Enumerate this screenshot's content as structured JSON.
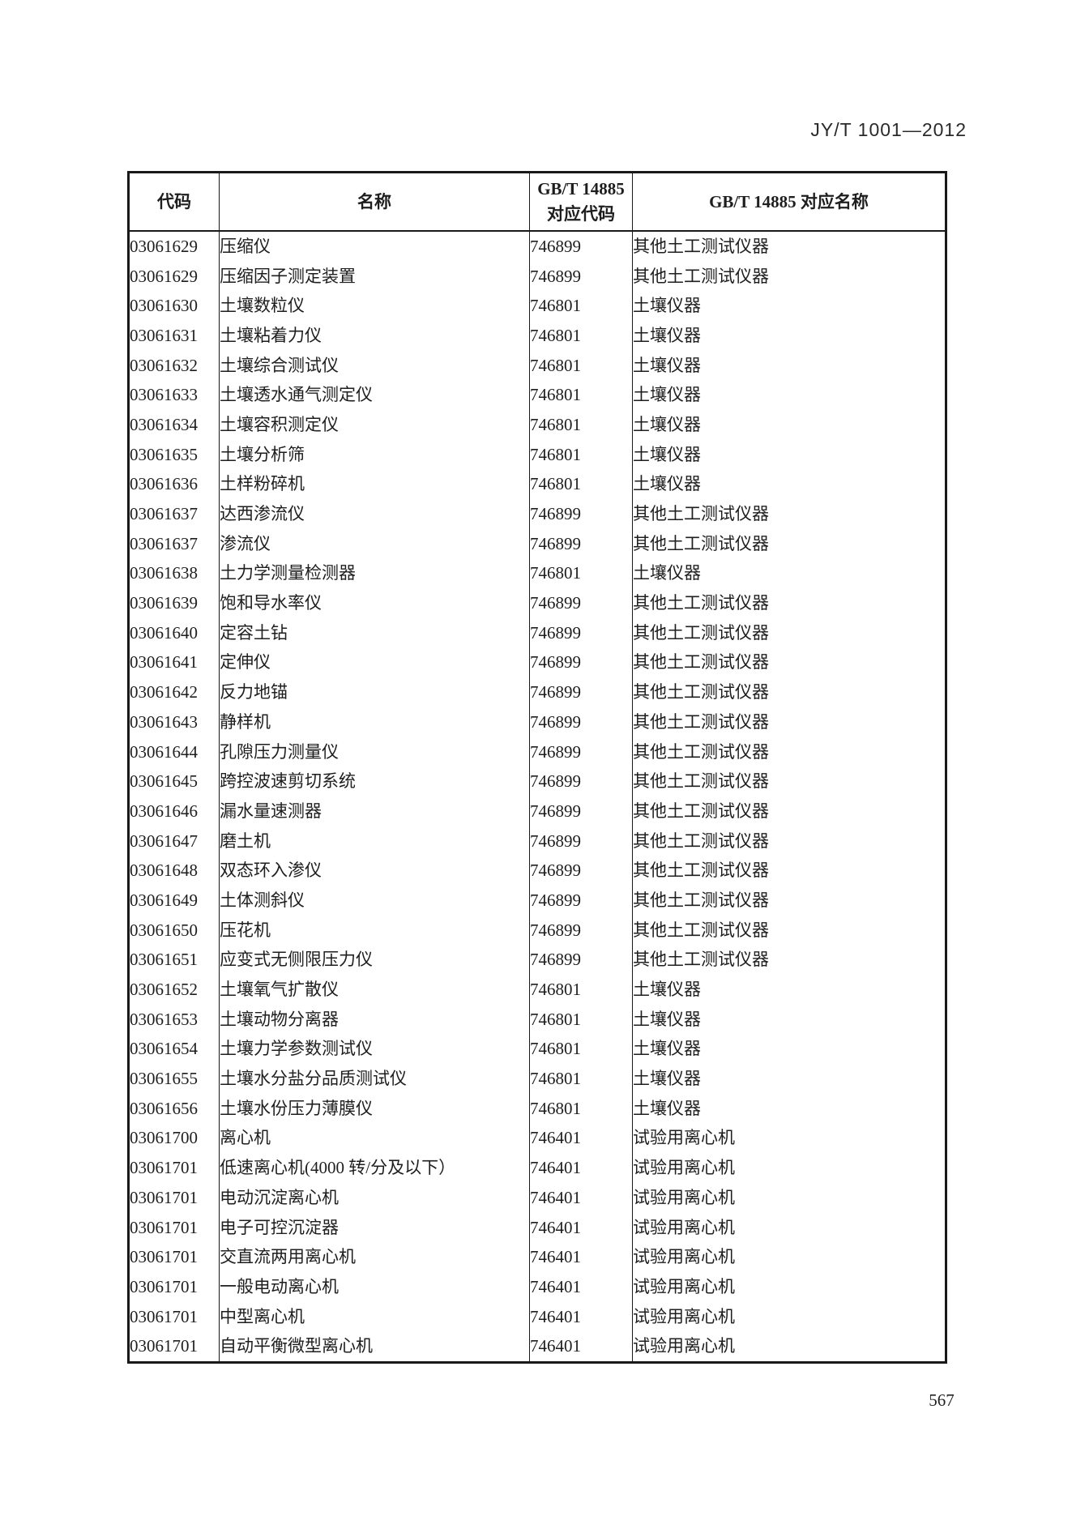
{
  "header": {
    "standard_number": "JY/T 1001—2012"
  },
  "table": {
    "columns": {
      "code": "代码",
      "name": "名称",
      "gbt_code_line1": "GB/T 14885",
      "gbt_code_line2": "对应代码",
      "gbt_name": "GB/T 14885 对应名称"
    },
    "rows": [
      {
        "code": "03061629",
        "name": "压缩仪",
        "gbt_code": "746899",
        "gbt_name": "其他土工测试仪器"
      },
      {
        "code": "03061629",
        "name": "压缩因子测定装置",
        "gbt_code": "746899",
        "gbt_name": "其他土工测试仪器"
      },
      {
        "code": "03061630",
        "name": "土壤数粒仪",
        "gbt_code": "746801",
        "gbt_name": "土壤仪器"
      },
      {
        "code": "03061631",
        "name": "土壤粘着力仪",
        "gbt_code": "746801",
        "gbt_name": "土壤仪器"
      },
      {
        "code": "03061632",
        "name": "土壤综合测试仪",
        "gbt_code": "746801",
        "gbt_name": "土壤仪器"
      },
      {
        "code": "03061633",
        "name": "土壤透水通气测定仪",
        "gbt_code": "746801",
        "gbt_name": "土壤仪器"
      },
      {
        "code": "03061634",
        "name": "土壤容积测定仪",
        "gbt_code": "746801",
        "gbt_name": "土壤仪器"
      },
      {
        "code": "03061635",
        "name": "土壤分析筛",
        "gbt_code": "746801",
        "gbt_name": "土壤仪器"
      },
      {
        "code": "03061636",
        "name": "土样粉碎机",
        "gbt_code": "746801",
        "gbt_name": "土壤仪器"
      },
      {
        "code": "03061637",
        "name": "达西渗流仪",
        "gbt_code": "746899",
        "gbt_name": "其他土工测试仪器"
      },
      {
        "code": "03061637",
        "name": "渗流仪",
        "gbt_code": "746899",
        "gbt_name": "其他土工测试仪器"
      },
      {
        "code": "03061638",
        "name": "土力学测量检测器",
        "gbt_code": "746801",
        "gbt_name": "土壤仪器"
      },
      {
        "code": "03061639",
        "name": "饱和导水率仪",
        "gbt_code": "746899",
        "gbt_name": "其他土工测试仪器"
      },
      {
        "code": "03061640",
        "name": "定容土钻",
        "gbt_code": "746899",
        "gbt_name": "其他土工测试仪器"
      },
      {
        "code": "03061641",
        "name": "定伸仪",
        "gbt_code": "746899",
        "gbt_name": "其他土工测试仪器"
      },
      {
        "code": "03061642",
        "name": "反力地锚",
        "gbt_code": "746899",
        "gbt_name": "其他土工测试仪器"
      },
      {
        "code": "03061643",
        "name": "静样机",
        "gbt_code": "746899",
        "gbt_name": "其他土工测试仪器"
      },
      {
        "code": "03061644",
        "name": "孔隙压力测量仪",
        "gbt_code": "746899",
        "gbt_name": "其他土工测试仪器"
      },
      {
        "code": "03061645",
        "name": "跨控波速剪切系统",
        "gbt_code": "746899",
        "gbt_name": "其他土工测试仪器"
      },
      {
        "code": "03061646",
        "name": "漏水量速测器",
        "gbt_code": "746899",
        "gbt_name": "其他土工测试仪器"
      },
      {
        "code": "03061647",
        "name": "磨土机",
        "gbt_code": "746899",
        "gbt_name": "其他土工测试仪器"
      },
      {
        "code": "03061648",
        "name": "双态环入渗仪",
        "gbt_code": "746899",
        "gbt_name": "其他土工测试仪器"
      },
      {
        "code": "03061649",
        "name": "土体测斜仪",
        "gbt_code": "746899",
        "gbt_name": "其他土工测试仪器"
      },
      {
        "code": "03061650",
        "name": "压花机",
        "gbt_code": "746899",
        "gbt_name": "其他土工测试仪器"
      },
      {
        "code": "03061651",
        "name": "应变式无侧限压力仪",
        "gbt_code": "746899",
        "gbt_name": "其他土工测试仪器"
      },
      {
        "code": "03061652",
        "name": "土壤氧气扩散仪",
        "gbt_code": "746801",
        "gbt_name": "土壤仪器"
      },
      {
        "code": "03061653",
        "name": "土壤动物分离器",
        "gbt_code": "746801",
        "gbt_name": "土壤仪器"
      },
      {
        "code": "03061654",
        "name": "土壤力学参数测试仪",
        "gbt_code": "746801",
        "gbt_name": "土壤仪器"
      },
      {
        "code": "03061655",
        "name": "土壤水分盐分品质测试仪",
        "gbt_code": "746801",
        "gbt_name": "土壤仪器"
      },
      {
        "code": "03061656",
        "name": "土壤水份压力薄膜仪",
        "gbt_code": "746801",
        "gbt_name": "土壤仪器"
      },
      {
        "code": "03061700",
        "name": "离心机",
        "gbt_code": "746401",
        "gbt_name": "试验用离心机"
      },
      {
        "code": "03061701",
        "name": "低速离心机(4000 转/分及以下）",
        "gbt_code": "746401",
        "gbt_name": "试验用离心机"
      },
      {
        "code": "03061701",
        "name": "电动沉淀离心机",
        "gbt_code": "746401",
        "gbt_name": "试验用离心机"
      },
      {
        "code": "03061701",
        "name": "电子可控沉淀器",
        "gbt_code": "746401",
        "gbt_name": "试验用离心机"
      },
      {
        "code": "03061701",
        "name": "交直流两用离心机",
        "gbt_code": "746401",
        "gbt_name": "试验用离心机"
      },
      {
        "code": "03061701",
        "name": "一般电动离心机",
        "gbt_code": "746401",
        "gbt_name": "试验用离心机"
      },
      {
        "code": "03061701",
        "name": "中型离心机",
        "gbt_code": "746401",
        "gbt_name": "试验用离心机"
      },
      {
        "code": "03061701",
        "name": "自动平衡微型离心机",
        "gbt_code": "746401",
        "gbt_name": "试验用离心机"
      }
    ]
  },
  "footer": {
    "page_number": "567"
  }
}
